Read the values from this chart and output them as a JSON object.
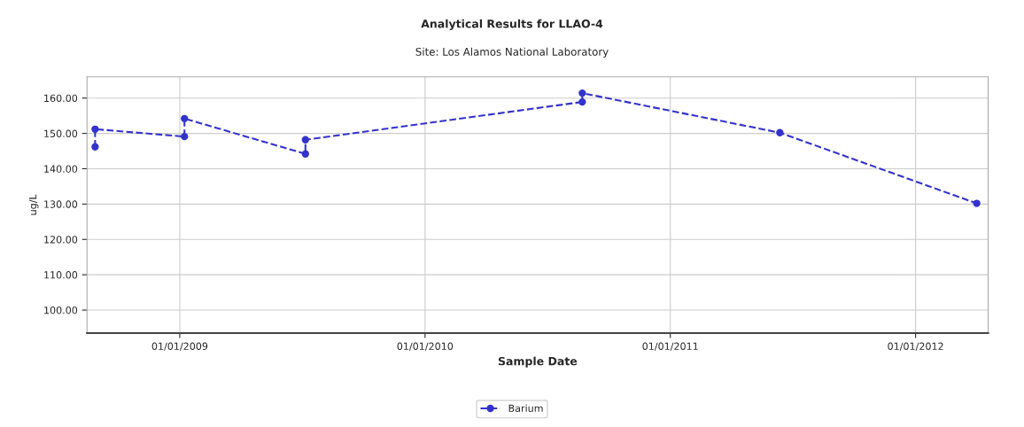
{
  "chart_data": {
    "type": "line",
    "title": "Analytical Results for LLAO-4",
    "subtitle": "Site: Los Alamos National Laboratory",
    "xlabel": "Sample Date",
    "ylabel": "ug/L",
    "xlim": [
      "2008-08-16",
      "2012-04-18"
    ],
    "xticks": [
      {
        "value": "2009-01-01",
        "label": "01/01/2009"
      },
      {
        "value": "2010-01-01",
        "label": "01/01/2010"
      },
      {
        "value": "2011-01-01",
        "label": "01/01/2011"
      },
      {
        "value": "2012-01-01",
        "label": "01/01/2012"
      }
    ],
    "ylim": [
      93.5,
      166
    ],
    "yticks": [
      {
        "value": 100,
        "label": "100.00"
      },
      {
        "value": 110,
        "label": "110.00"
      },
      {
        "value": 120,
        "label": "120.00"
      },
      {
        "value": 130,
        "label": "130.00"
      },
      {
        "value": 140,
        "label": "140.00"
      },
      {
        "value": 150,
        "label": "150.00"
      },
      {
        "value": 160,
        "label": "160.00"
      }
    ],
    "series": [
      {
        "name": "Barium",
        "color": "#3333cc",
        "x": [
          "2008-08-28",
          "2008-08-28",
          "2009-01-08",
          "2009-01-08",
          "2009-07-07",
          "2009-07-07",
          "2010-08-23",
          "2010-08-23",
          "2011-06-13",
          "2012-04-01"
        ],
        "values": [
          146.2,
          151.2,
          149.1,
          154.2,
          144.2,
          148.2,
          158.9,
          161.4,
          150.2,
          130.2
        ]
      }
    ],
    "grid": true,
    "legend": "bottom",
    "marker": "circle",
    "line_style": "dashed"
  }
}
